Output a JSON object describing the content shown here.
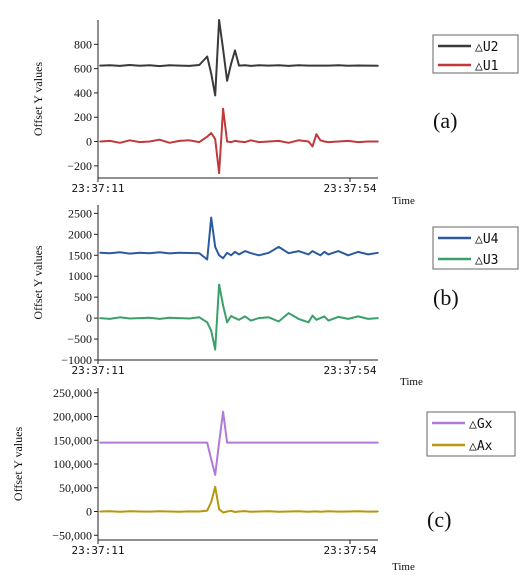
{
  "chart_data": [
    {
      "type": "line",
      "panel_label": "(a)",
      "ylabel": "Offset Y values",
      "xlabel": "Time",
      "x_tick_labels": [
        "23:37:11",
        "23:37:54"
      ],
      "y_ticks": [
        -200,
        0,
        200,
        400,
        600,
        800
      ],
      "y_tick_labels": [
        "−200",
        "0",
        "200",
        "400",
        "600",
        "800"
      ],
      "ylim": [
        -300,
        1000
      ],
      "grid": false,
      "legend_position": "right",
      "x": [
        0,
        10,
        20,
        30,
        40,
        50,
        60,
        70,
        80,
        90,
        100,
        108,
        112,
        116,
        120,
        124,
        128,
        132,
        136,
        140,
        146,
        152,
        160,
        170,
        180,
        190,
        200,
        210,
        214,
        218,
        222,
        226,
        230,
        240,
        250,
        260,
        270,
        280
      ],
      "series": [
        {
          "name": "△U2",
          "color": "#3a3a3a",
          "values": [
            625,
            628,
            622,
            630,
            624,
            627,
            621,
            628,
            625,
            622,
            630,
            700,
            560,
            380,
            1000,
            760,
            500,
            640,
            750,
            625,
            628,
            622,
            627,
            625,
            628,
            622,
            627,
            625,
            625,
            625,
            625,
            625,
            625,
            627,
            624,
            626,
            625,
            624
          ]
        },
        {
          "name": "△U1",
          "color": "#c0393b",
          "values": [
            0,
            5,
            -10,
            10,
            -5,
            0,
            15,
            -10,
            5,
            10,
            -5,
            40,
            70,
            20,
            -260,
            270,
            0,
            -5,
            5,
            0,
            -5,
            10,
            -5,
            0,
            5,
            -10,
            10,
            0,
            -40,
            60,
            10,
            0,
            -5,
            0,
            5,
            -5,
            0,
            0
          ]
        }
      ]
    },
    {
      "type": "line",
      "panel_label": "(b)",
      "ylabel": "Offset Y values",
      "xlabel": "Time",
      "x_tick_labels": [
        "23:37:11",
        "23:37:54"
      ],
      "y_ticks": [
        -1000,
        -500,
        0,
        500,
        1000,
        1500,
        2000,
        2500
      ],
      "y_tick_labels": [
        "−1000",
        "−500",
        "0",
        "500",
        "1000",
        "1500",
        "2000",
        "2500"
      ],
      "ylim": [
        -1000,
        2700
      ],
      "grid": false,
      "legend_position": "right",
      "x": [
        0,
        10,
        20,
        30,
        40,
        50,
        60,
        70,
        80,
        90,
        100,
        108,
        112,
        116,
        120,
        124,
        128,
        132,
        136,
        140,
        146,
        152,
        160,
        170,
        180,
        190,
        200,
        210,
        214,
        218,
        222,
        226,
        230,
        240,
        250,
        260,
        270,
        280
      ],
      "series": [
        {
          "name": "△U4",
          "color": "#2d5a9e",
          "values": [
            1560,
            1550,
            1570,
            1540,
            1560,
            1550,
            1570,
            1545,
            1560,
            1555,
            1550,
            1400,
            2400,
            1700,
            1500,
            1430,
            1560,
            1500,
            1580,
            1520,
            1600,
            1550,
            1500,
            1560,
            1700,
            1550,
            1600,
            1520,
            1600,
            1550,
            1500,
            1580,
            1520,
            1600,
            1500,
            1580,
            1520,
            1560
          ]
        },
        {
          "name": "△U3",
          "color": "#3aa06a",
          "values": [
            0,
            -20,
            20,
            -10,
            0,
            10,
            -20,
            10,
            0,
            -10,
            20,
            -100,
            -300,
            -750,
            800,
            300,
            -100,
            50,
            0,
            -40,
            40,
            -60,
            0,
            20,
            -80,
            120,
            -20,
            -100,
            60,
            -40,
            0,
            40,
            -60,
            30,
            -20,
            40,
            -20,
            0
          ]
        }
      ]
    },
    {
      "type": "line",
      "panel_label": "(c)",
      "ylabel": "Offset Y values",
      "xlabel": "Time",
      "x_tick_labels": [
        "23:37:11",
        "23:37:54"
      ],
      "y_ticks": [
        -50000,
        0,
        50000,
        100000,
        150000,
        200000,
        250000
      ],
      "y_tick_labels": [
        "−50,000",
        "0",
        "50,000",
        "100,000",
        "150,000",
        "200,000",
        "250,000"
      ],
      "ylim": [
        -60000,
        260000
      ],
      "grid": false,
      "legend_position": "right",
      "x": [
        0,
        10,
        20,
        30,
        40,
        50,
        60,
        70,
        80,
        90,
        100,
        108,
        112,
        116,
        120,
        124,
        128,
        132,
        136,
        140,
        146,
        152,
        160,
        170,
        180,
        190,
        200,
        210,
        214,
        218,
        222,
        226,
        230,
        240,
        250,
        260,
        270,
        280
      ],
      "series": [
        {
          "name": "△Gx",
          "color": "#b07ad6",
          "values": [
            145000,
            145000,
            145000,
            145000,
            145000,
            145000,
            145000,
            145000,
            145000,
            145000,
            145000,
            145000,
            110000,
            77000,
            145000,
            210000,
            145000,
            145000,
            145000,
            145000,
            145000,
            145000,
            145000,
            145000,
            145000,
            145000,
            145000,
            145000,
            145000,
            145000,
            145000,
            145000,
            145000,
            145000,
            145000,
            145000,
            145000,
            145000
          ]
        },
        {
          "name": "△Ax",
          "color": "#b8960f",
          "values": [
            0,
            500,
            -500,
            400,
            0,
            -300,
            500,
            0,
            -400,
            300,
            0,
            2000,
            20000,
            52000,
            5000,
            -2000,
            0,
            1500,
            -1000,
            0,
            800,
            -600,
            0,
            400,
            -500,
            0,
            500,
            -400,
            0,
            300,
            -500,
            0,
            400,
            -300,
            0,
            500,
            -200,
            0
          ]
        }
      ]
    }
  ]
}
